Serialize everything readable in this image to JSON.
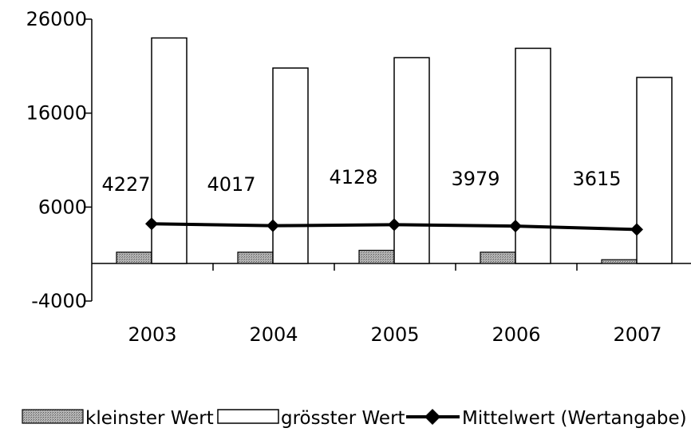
{
  "chart_data": {
    "type": "bar",
    "categories": [
      "2003",
      "2004",
      "2005",
      "2006",
      "2007"
    ],
    "series": [
      {
        "name": "kleinster Wert",
        "type": "bar",
        "values": [
          1200,
          1200,
          1400,
          1200,
          400
        ],
        "color": "#a6a6a6"
      },
      {
        "name": "grösster Wert",
        "type": "bar",
        "values": [
          24000,
          20800,
          21900,
          22900,
          19800
        ],
        "color": "#ffffff"
      },
      {
        "name": "Mittelwert (Wertangabe)",
        "type": "line",
        "values": [
          4227,
          4017,
          4128,
          3979,
          3615
        ],
        "color": "#000000"
      }
    ],
    "data_labels": [
      "4227",
      "4017",
      "4128",
      "3979",
      "3615"
    ],
    "yticks": [
      26000,
      16000,
      6000,
      -4000
    ],
    "ylim": [
      -4000,
      26000
    ],
    "legend_position": "bottom",
    "title": "",
    "xlabel": "",
    "ylabel": ""
  }
}
